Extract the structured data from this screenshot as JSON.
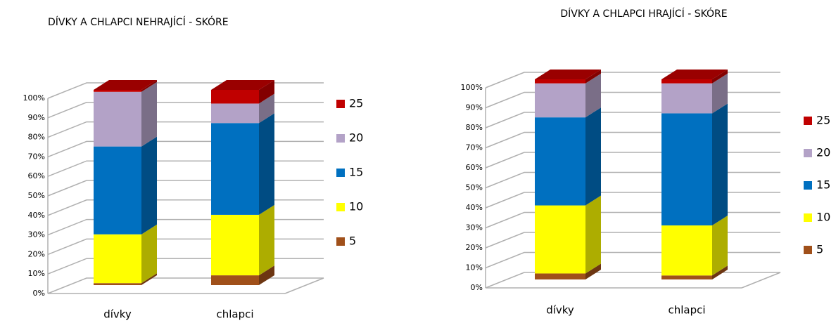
{
  "chart_data": [
    {
      "type": "bar",
      "stacked": true,
      "title": "DÍVKY A CHLAPCI NEHRAJÍCÍ - SKÓRE",
      "categories": [
        "dívky",
        "chlapci"
      ],
      "series": [
        {
          "name": "5",
          "color": "#a0501a",
          "values": [
            1,
            5
          ]
        },
        {
          "name": "10",
          "color": "#ffff00",
          "values": [
            25,
            31
          ]
        },
        {
          "name": "15",
          "color": "#0070c0",
          "values": [
            45,
            47
          ]
        },
        {
          "name": "20",
          "color": "#b3a2c7",
          "values": [
            28,
            10
          ]
        },
        {
          "name": "25",
          "color": "#c00000",
          "values": [
            1,
            7
          ]
        }
      ],
      "ylim": [
        0,
        100
      ],
      "yticks": [
        {
          "value": 0,
          "label": "0%"
        },
        {
          "value": 10,
          "label": "10%"
        },
        {
          "value": 20,
          "label": "20%"
        },
        {
          "value": 30,
          "label": "30%"
        },
        {
          "value": 40,
          "label": "40%"
        },
        {
          "value": 50,
          "label": "50%"
        },
        {
          "value": 60,
          "label": "60%"
        },
        {
          "value": 70,
          "label": "70%"
        },
        {
          "value": 80,
          "label": "80%"
        },
        {
          "value": 90,
          "label": "90%"
        },
        {
          "value": 100,
          "label": "100%"
        }
      ],
      "grid": true,
      "legend": "right"
    },
    {
      "type": "bar",
      "stacked": true,
      "title": "DÍVKY A CHLAPCI HRAJÍCÍ - SKÓRE",
      "categories": [
        "dívky",
        "chlapci"
      ],
      "series": [
        {
          "name": "5",
          "color": "#a0501a",
          "values": [
            3,
            2
          ]
        },
        {
          "name": "10",
          "color": "#ffff00",
          "values": [
            34,
            25
          ]
        },
        {
          "name": "15",
          "color": "#0070c0",
          "values": [
            44,
            56
          ]
        },
        {
          "name": "20",
          "color": "#b3a2c7",
          "values": [
            17,
            15
          ]
        },
        {
          "name": "25",
          "color": "#c00000",
          "values": [
            2,
            2
          ]
        }
      ],
      "ylim": [
        0,
        100
      ],
      "yticks": [
        {
          "value": 0,
          "label": "0%"
        },
        {
          "value": 10,
          "label": "10%"
        },
        {
          "value": 20,
          "label": "20%"
        },
        {
          "value": 30,
          "label": "30%"
        },
        {
          "value": 40,
          "label": "40%"
        },
        {
          "value": 50,
          "label": "50%"
        },
        {
          "value": 60,
          "label": "60%"
        },
        {
          "value": 70,
          "label": "70%"
        },
        {
          "value": 80,
          "label": "80%"
        },
        {
          "value": 90,
          "label": "90%"
        },
        {
          "value": 100,
          "label": "100%"
        }
      ],
      "grid": true,
      "legend": "right"
    }
  ]
}
